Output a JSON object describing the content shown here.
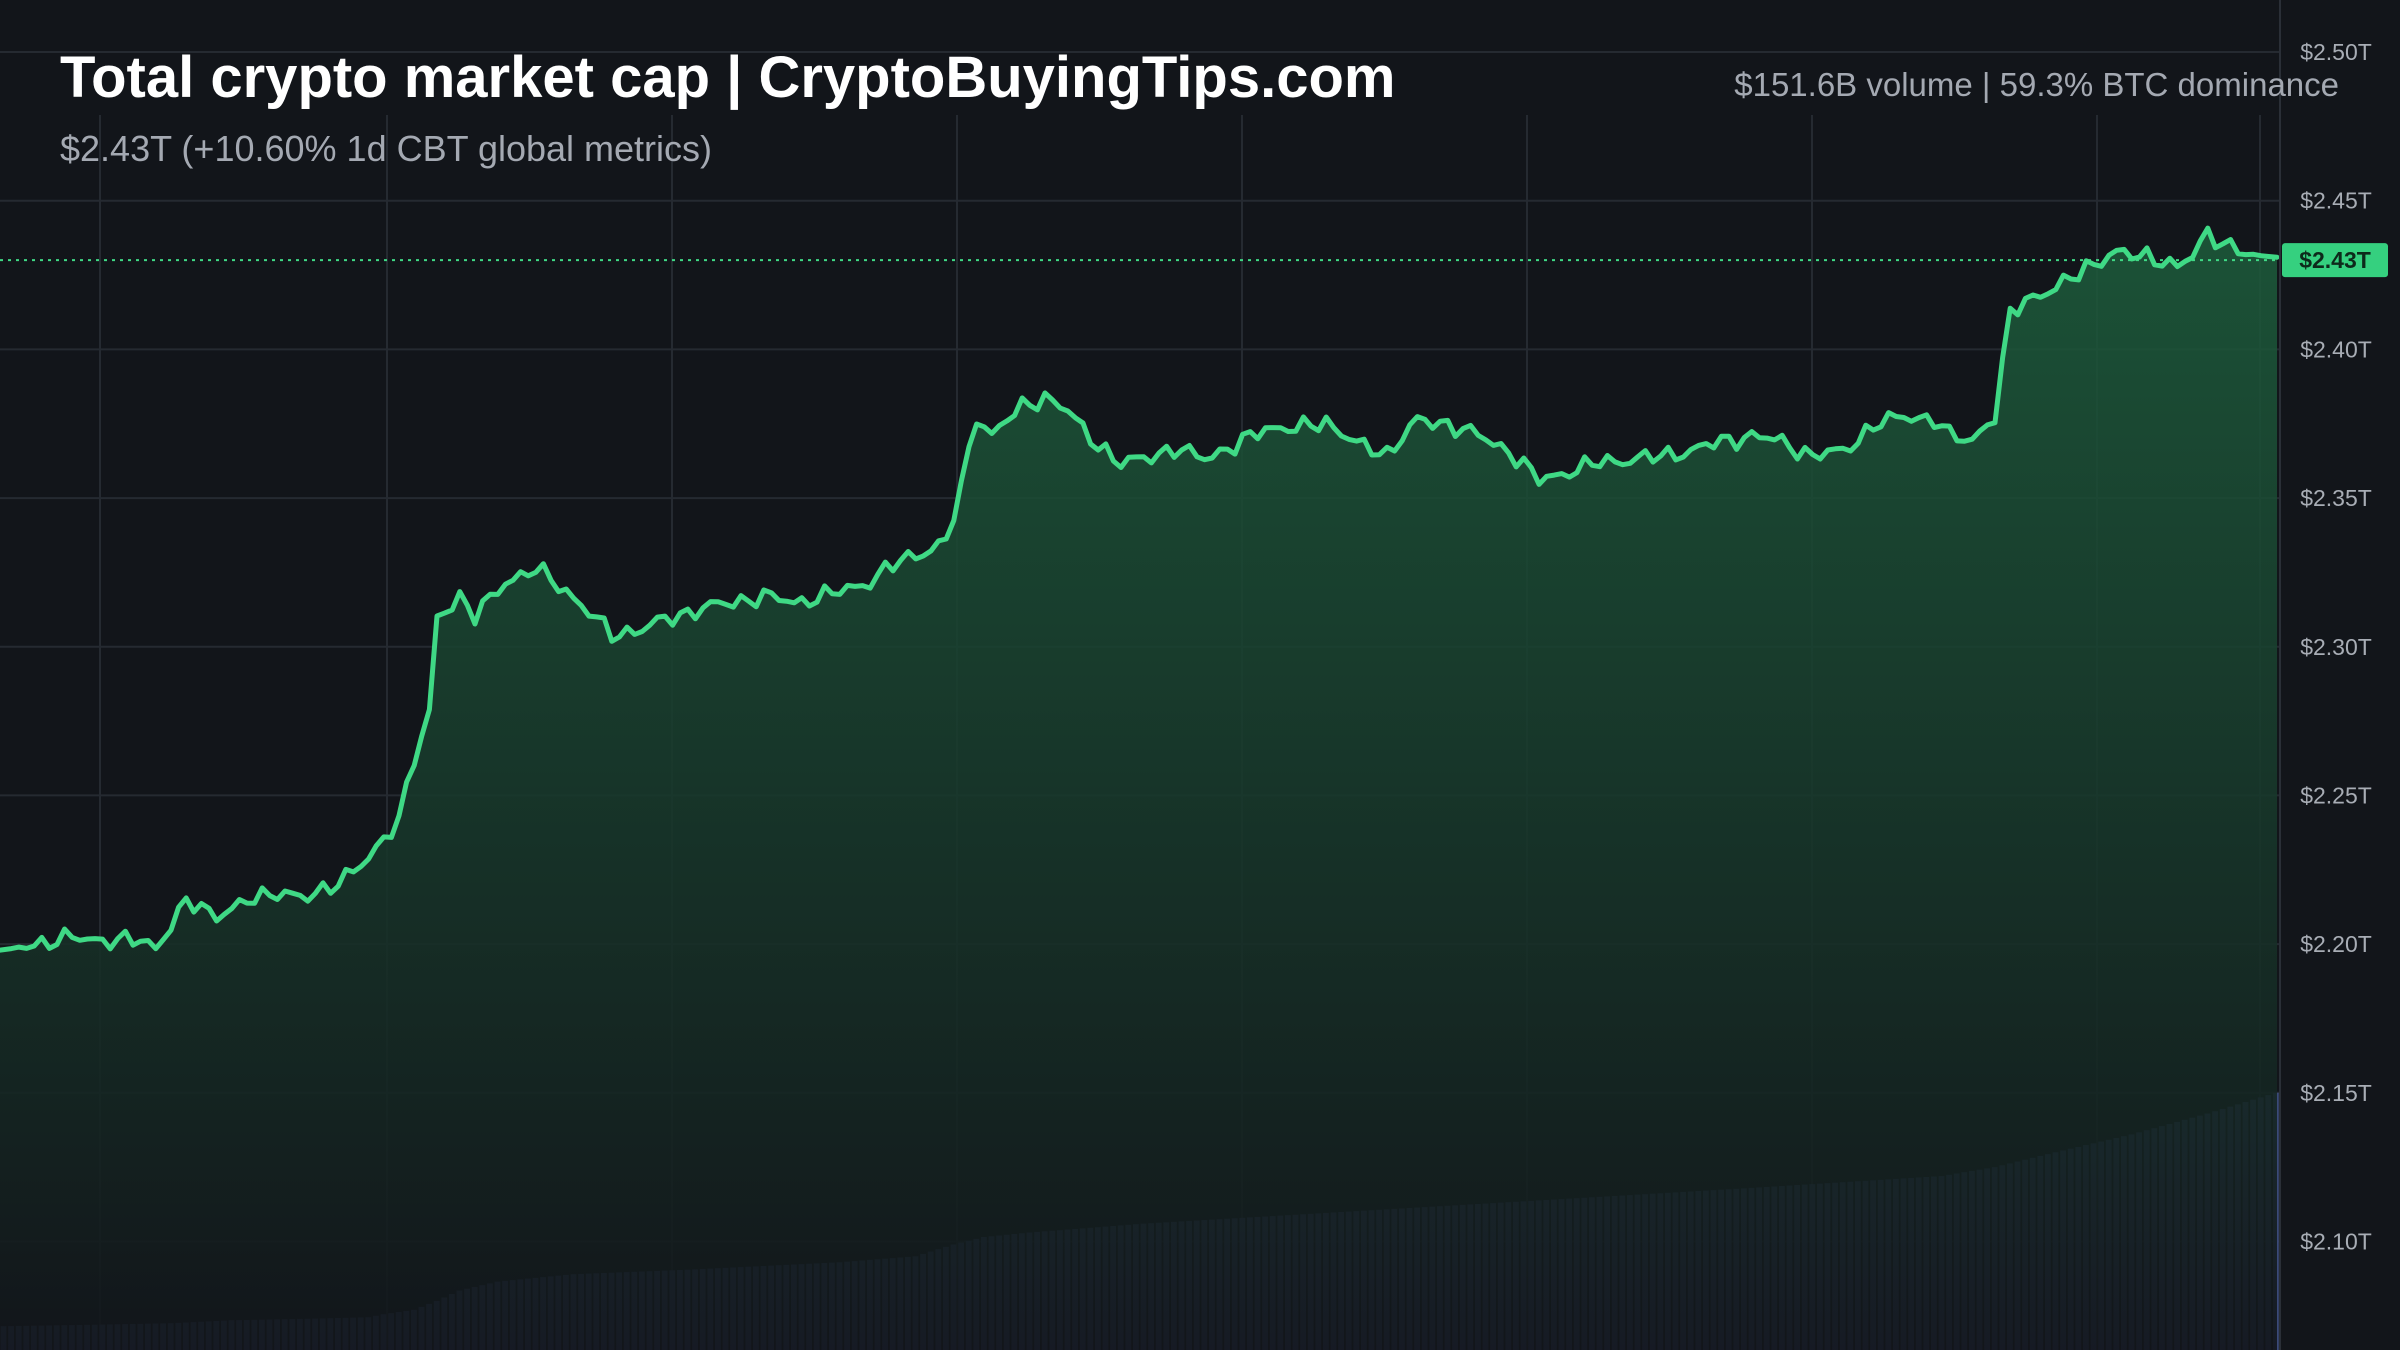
{
  "header": {
    "title": "Total crypto market cap | CryptoBuyingTips.com",
    "subtitle": "$2.43T (+10.60% 1d CBT global metrics)",
    "stats": "$151.6B volume | 59.3% BTC dominance"
  },
  "colors": {
    "background": "#12151a",
    "line": "#3fd985",
    "area": "#1c5a3a",
    "volume": "#3b4a78",
    "grid": "#252a31",
    "price_tag": "#35d07f"
  },
  "chart_data": {
    "type": "area",
    "x_count": 300,
    "ylim": [
      2.0635,
      2.5175
    ],
    "y_ticks": [
      {
        "value": 2.5,
        "label": "$2.50T"
      },
      {
        "value": 2.45,
        "label": "$2.45T"
      },
      {
        "value": 2.4,
        "label": "$2.40T"
      },
      {
        "value": 2.35,
        "label": "$2.35T"
      },
      {
        "value": 2.3,
        "label": "$2.30T"
      },
      {
        "value": 2.25,
        "label": "$2.25T"
      },
      {
        "value": 2.2,
        "label": "$2.20T"
      },
      {
        "value": 2.15,
        "label": "$2.15T"
      },
      {
        "value": 2.1,
        "label": "$2.10T"
      }
    ],
    "current": {
      "value": 2.43,
      "label": "$2.43T"
    },
    "market_cap_keypoints": [
      [
        0,
        2.198
      ],
      [
        8,
        2.202
      ],
      [
        18,
        2.201
      ],
      [
        20,
        2.199
      ],
      [
        24,
        2.214
      ],
      [
        28,
        2.21
      ],
      [
        36,
        2.218
      ],
      [
        40,
        2.215
      ],
      [
        45,
        2.223
      ],
      [
        48,
        2.228
      ],
      [
        52,
        2.243
      ],
      [
        54,
        2.262
      ],
      [
        56,
        2.277
      ],
      [
        57,
        2.31
      ],
      [
        60,
        2.317
      ],
      [
        62,
        2.31
      ],
      [
        66,
        2.322
      ],
      [
        70,
        2.326
      ],
      [
        74,
        2.319
      ],
      [
        80,
        2.304
      ],
      [
        84,
        2.306
      ],
      [
        88,
        2.31
      ],
      [
        92,
        2.313
      ],
      [
        96,
        2.315
      ],
      [
        100,
        2.317
      ],
      [
        104,
        2.315
      ],
      [
        108,
        2.317
      ],
      [
        114,
        2.322
      ],
      [
        118,
        2.329
      ],
      [
        122,
        2.333
      ],
      [
        124,
        2.335
      ],
      [
        126,
        2.354
      ],
      [
        128,
        2.378
      ],
      [
        130,
        2.371
      ],
      [
        134,
        2.381
      ],
      [
        137,
        2.384
      ],
      [
        140,
        2.379
      ],
      [
        144,
        2.368
      ],
      [
        147,
        2.361
      ],
      [
        150,
        2.364
      ],
      [
        154,
        2.366
      ],
      [
        158,
        2.364
      ],
      [
        162,
        2.367
      ],
      [
        166,
        2.374
      ],
      [
        170,
        2.373
      ],
      [
        174,
        2.376
      ],
      [
        178,
        2.368
      ],
      [
        182,
        2.365
      ],
      [
        186,
        2.376
      ],
      [
        190,
        2.375
      ],
      [
        194,
        2.371
      ],
      [
        198,
        2.366
      ],
      [
        202,
        2.356
      ],
      [
        206,
        2.359
      ],
      [
        210,
        2.362
      ],
      [
        214,
        2.363
      ],
      [
        218,
        2.364
      ],
      [
        222,
        2.366
      ],
      [
        226,
        2.369
      ],
      [
        230,
        2.371
      ],
      [
        234,
        2.369
      ],
      [
        238,
        2.364
      ],
      [
        242,
        2.366
      ],
      [
        246,
        2.374
      ],
      [
        250,
        2.378
      ],
      [
        254,
        2.376
      ],
      [
        256,
        2.371
      ],
      [
        259,
        2.37
      ],
      [
        262,
        2.377
      ],
      [
        264,
        2.412
      ],
      [
        266,
        2.417
      ],
      [
        270,
        2.42
      ],
      [
        274,
        2.428
      ],
      [
        278,
        2.432
      ],
      [
        282,
        2.432
      ],
      [
        286,
        2.427
      ],
      [
        288,
        2.432
      ],
      [
        290,
        2.44
      ],
      [
        292,
        2.435
      ],
      [
        295,
        2.432
      ],
      [
        299,
        2.431
      ]
    ],
    "volume_keypoints": [
      [
        0,
        2.0715
      ],
      [
        12,
        2.072
      ],
      [
        22,
        2.0725
      ],
      [
        30,
        2.0735
      ],
      [
        40,
        2.074
      ],
      [
        48,
        2.0745
      ],
      [
        50,
        2.0755
      ],
      [
        54,
        2.077
      ],
      [
        57,
        2.08
      ],
      [
        60,
        2.0835
      ],
      [
        65,
        2.0865
      ],
      [
        75,
        2.089
      ],
      [
        90,
        2.0905
      ],
      [
        110,
        2.093
      ],
      [
        120,
        2.095
      ],
      [
        125,
        2.099
      ],
      [
        129,
        2.1015
      ],
      [
        135,
        2.103
      ],
      [
        150,
        2.106
      ],
      [
        170,
        2.109
      ],
      [
        200,
        2.1135
      ],
      [
        230,
        2.118
      ],
      [
        255,
        2.122
      ],
      [
        262,
        2.125
      ],
      [
        270,
        2.13
      ],
      [
        280,
        2.136
      ],
      [
        290,
        2.143
      ],
      [
        299,
        2.15
      ]
    ]
  }
}
